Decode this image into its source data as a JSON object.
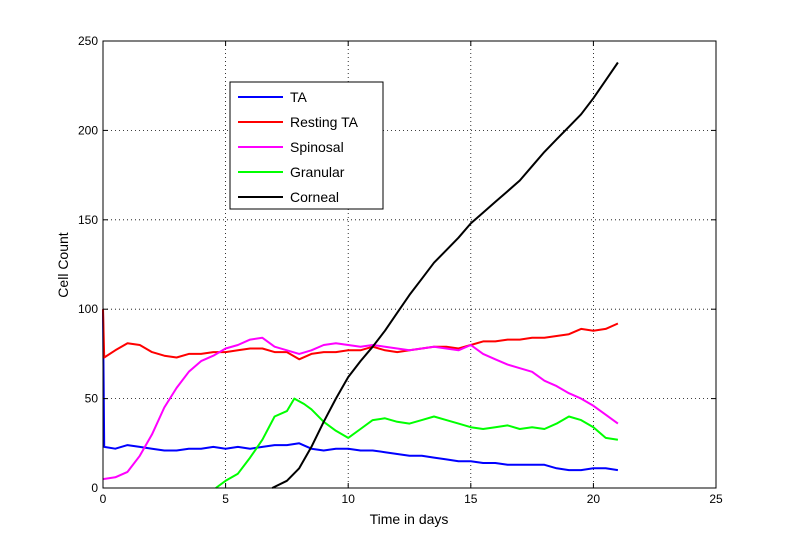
{
  "chart_data": {
    "type": "line",
    "xlabel": "Time in days",
    "ylabel": "Cell Count",
    "xlim": [
      0,
      25
    ],
    "ylim": [
      0,
      250
    ],
    "xticks": [
      0,
      5,
      10,
      15,
      20,
      25
    ],
    "yticks": [
      0,
      50,
      100,
      150,
      200,
      250
    ],
    "xtick_labels": [
      "0",
      "5",
      "10",
      "15",
      "20",
      "25"
    ],
    "ytick_labels": [
      "0",
      "50",
      "100",
      "150",
      "200",
      "250"
    ],
    "grid": true,
    "legend_position": "upper-left",
    "series": [
      {
        "name": "TA",
        "color": "#0000ff",
        "x": [
          0,
          0.05,
          0.5,
          1,
          1.5,
          2,
          2.5,
          3,
          3.5,
          4,
          4.5,
          5,
          5.5,
          6,
          6.5,
          7,
          7.5,
          8,
          8.5,
          9,
          9.5,
          10,
          10.5,
          11,
          11.5,
          12,
          12.5,
          13,
          13.5,
          14,
          14.5,
          15,
          15.5,
          16,
          16.5,
          17,
          17.5,
          18,
          18.5,
          19,
          19.5,
          20,
          20.5,
          21
        ],
        "y": [
          100,
          23,
          22,
          24,
          23,
          22,
          21,
          21,
          22,
          22,
          23,
          22,
          23,
          22,
          23,
          24,
          24,
          25,
          22,
          21,
          22,
          22,
          21,
          21,
          20,
          19,
          18,
          18,
          17,
          16,
          15,
          15,
          14,
          14,
          13,
          13,
          13,
          13,
          11,
          10,
          10,
          11,
          11,
          10
        ]
      },
      {
        "name": "Resting TA",
        "color": "#ff0000",
        "x": [
          0,
          0.05,
          0.5,
          1,
          1.5,
          2,
          2.5,
          3,
          3.5,
          4,
          4.5,
          5,
          5.5,
          6,
          6.5,
          7,
          7.5,
          8,
          8.5,
          9,
          9.5,
          10,
          10.5,
          11,
          11.5,
          12,
          12.5,
          13,
          13.5,
          14,
          14.5,
          15,
          15.5,
          16,
          16.5,
          17,
          17.5,
          18,
          18.5,
          19,
          19.5,
          20,
          20.5,
          21
        ],
        "y": [
          100,
          73,
          77,
          81,
          80,
          76,
          74,
          73,
          75,
          75,
          76,
          76,
          77,
          78,
          78,
          76,
          76,
          72,
          75,
          76,
          76,
          77,
          77,
          79,
          77,
          76,
          77,
          78,
          79,
          79,
          78,
          80,
          82,
          82,
          83,
          83,
          84,
          84,
          85,
          86,
          89,
          88,
          89,
          92
        ]
      },
      {
        "name": "Spinosal",
        "color": "#ff00ff",
        "x": [
          0,
          0.5,
          1,
          1.5,
          2,
          2.5,
          3,
          3.5,
          4,
          4.5,
          5,
          5.5,
          6,
          6.5,
          7,
          7.5,
          8,
          8.5,
          9,
          9.5,
          10,
          10.5,
          11,
          11.5,
          12,
          12.5,
          13,
          13.5,
          14,
          14.5,
          15,
          15.5,
          16,
          16.5,
          17,
          17.5,
          18,
          18.5,
          19,
          19.5,
          20,
          20.5,
          21
        ],
        "y": [
          5,
          6,
          9,
          18,
          30,
          45,
          56,
          65,
          71,
          74,
          78,
          80,
          83,
          84,
          79,
          77,
          75,
          77,
          80,
          81,
          80,
          79,
          80,
          79,
          78,
          77,
          78,
          79,
          78,
          77,
          80,
          75,
          72,
          69,
          67,
          65,
          60,
          57,
          53,
          50,
          46,
          41,
          36
        ]
      },
      {
        "name": "Granular",
        "color": "#00ff00",
        "x": [
          4.6,
          5,
          5.5,
          6,
          6.5,
          7,
          7.5,
          7.8,
          8.2,
          8.5,
          9,
          9.5,
          10,
          10.5,
          11,
          11.5,
          12,
          12.5,
          13,
          13.5,
          14,
          14.5,
          15,
          15.5,
          16,
          16.5,
          17,
          17.5,
          18,
          18.5,
          19,
          19.5,
          20,
          20.5,
          21
        ],
        "y": [
          0,
          4,
          8,
          17,
          27,
          40,
          43,
          50,
          47,
          44,
          37,
          32,
          28,
          33,
          38,
          39,
          37,
          36,
          38,
          40,
          38,
          36,
          34,
          33,
          34,
          35,
          33,
          34,
          33,
          36,
          40,
          38,
          34,
          28,
          27
        ]
      },
      {
        "name": "Corneal",
        "color": "#000000",
        "x": [
          6.9,
          7.5,
          8,
          8.5,
          9,
          9.5,
          10,
          10.5,
          11,
          11.5,
          12,
          12.5,
          13,
          13.5,
          14,
          14.5,
          15,
          15.5,
          16,
          16.5,
          17,
          17.5,
          18,
          18.5,
          19,
          19.5,
          20,
          20.5,
          21
        ],
        "y": [
          0,
          4,
          11,
          23,
          37,
          50,
          62,
          71,
          79,
          88,
          98,
          108,
          117,
          126,
          133,
          140,
          148,
          154,
          160,
          166,
          172,
          180,
          188,
          195,
          202,
          209,
          218,
          228,
          238
        ]
      }
    ]
  }
}
